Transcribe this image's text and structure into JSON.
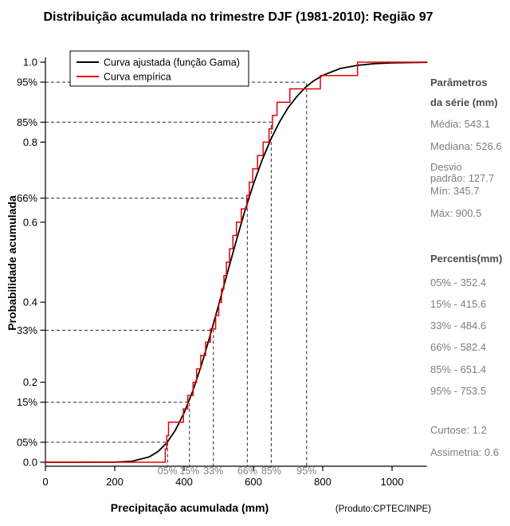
{
  "chart_data": {
    "type": "line",
    "title": "Distribuição acumulada no trimestre DJF (1981-2010): Região 97",
    "xlabel": "Precipitação acumulada (mm)",
    "ylabel": "Probabilidade acumulada",
    "xlim": [
      0,
      1100
    ],
    "ylim": [
      0,
      1
    ],
    "x_ticks": [
      0,
      200,
      400,
      600,
      800,
      1000
    ],
    "y_ticks": [
      0,
      0.2,
      0.4,
      0.6,
      0.8,
      1
    ],
    "y_tick_labels": [
      "0.0",
      "0.2",
      "0.4",
      "0.6",
      "0.8",
      "1.0"
    ],
    "grid": false,
    "legend_position": "top-left",
    "percentile_guides": [
      {
        "label": "05%",
        "p": 0.05,
        "value": 352.4
      },
      {
        "label": "15%",
        "p": 0.15,
        "value": 415.6
      },
      {
        "label": "33%",
        "p": 0.33,
        "value": 484.6
      },
      {
        "label": "66%",
        "p": 0.66,
        "value": 582.4
      },
      {
        "label": "85%",
        "p": 0.85,
        "value": 651.4
      },
      {
        "label": "95%",
        "p": 0.95,
        "value": 753.5
      }
    ],
    "series": [
      {
        "name": "Curva ajustada (função Gama)",
        "color": "#000000",
        "style": "smooth",
        "distribution": "gamma",
        "x": [
          0,
          100,
          150,
          200,
          250,
          300,
          325,
          350,
          375,
          400,
          425,
          450,
          475,
          500,
          525,
          550,
          575,
          600,
          625,
          650,
          675,
          700,
          725,
          750,
          775,
          800,
          850,
          900,
          950,
          1000,
          1100
        ],
        "y": [
          0,
          0,
          0.0001,
          0.0002,
          0.0023,
          0.0135,
          0.0269,
          0.0484,
          0.0802,
          0.1234,
          0.178,
          0.243,
          0.316,
          0.394,
          0.474,
          0.552,
          0.627,
          0.695,
          0.755,
          0.807,
          0.85,
          0.886,
          0.914,
          0.937,
          0.954,
          0.967,
          0.984,
          0.992,
          0.9965,
          0.9984,
          0.9997
        ]
      },
      {
        "name": "Curva empírica",
        "color": "#e60000",
        "style": "step",
        "n": 30,
        "sample_sorted": [
          345.7,
          350.0,
          355.2,
          398.0,
          410.5,
          426.0,
          436.0,
          448.0,
          462.0,
          476.0,
          491.0,
          500.0,
          508.0,
          515.0,
          522.0,
          531.2,
          541.0,
          551.0,
          565.0,
          581.0,
          588.0,
          598.0,
          612.0,
          628.0,
          645.0,
          655.0,
          668.0,
          705.0,
          793.0,
          900.5
        ]
      }
    ]
  },
  "side_panel": {
    "params": {
      "title_line1": "Parâmetros",
      "title_line2": "da série (mm)",
      "media": "Média: 543.1",
      "mediana": "Mediana: 526.6",
      "desvio_line1": "Desvio",
      "desvio_line2": "padrão: 127.7",
      "min": "Mín: 345.7",
      "max": "Máx: 900.5"
    },
    "percentis": {
      "title": "Percentis(mm)",
      "items": [
        "05% - 352.4",
        "15% - 415.6",
        "33% - 484.6",
        "66% - 582.4",
        "85% - 651.4",
        "95% - 753.5"
      ]
    },
    "moments": {
      "curtose": "Curtose: 1.2",
      "assimetria": "Assimetria: 0.6"
    },
    "produto": "(Produto:CPTEC/INPE)"
  },
  "colors": {
    "fitted_curve": "#000000",
    "empirical_curve": "#e60000",
    "guide_line": "#2a2a2a",
    "axis": "#000000",
    "percent_bottom_label": "#808080",
    "panel_text": "#7e7e7e",
    "panel_header": "#4d4d4d"
  }
}
